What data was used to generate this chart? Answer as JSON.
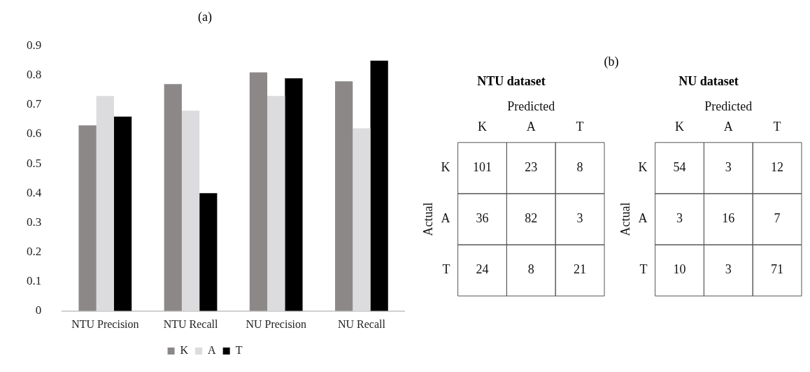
{
  "chart_data": [
    {
      "type": "bar",
      "title": "(a)",
      "categories": [
        "NTU Precision",
        "NTU Recall",
        "NU Precision",
        "NU Recall"
      ],
      "series": [
        {
          "name": "K",
          "color": "#8c8888",
          "values": [
            0.63,
            0.77,
            0.81,
            0.78
          ]
        },
        {
          "name": "A",
          "color": "#dcdbdd",
          "values": [
            0.73,
            0.68,
            0.73,
            0.62
          ]
        },
        {
          "name": "T",
          "color": "#000000",
          "values": [
            0.66,
            0.4,
            0.79,
            0.85
          ]
        }
      ],
      "ylim": [
        0,
        0.9
      ],
      "yticks": [
        0,
        0.1,
        0.2,
        0.3,
        0.4,
        0.5,
        0.6,
        0.7,
        0.8,
        0.9
      ],
      "grid": false,
      "legend": "bottom"
    },
    {
      "type": "heatmap",
      "title": "NTU dataset",
      "xlabel": "Predicted",
      "ylabel": "Actual",
      "annotations": [
        "(b)"
      ],
      "categories": [
        "K",
        "A",
        "T"
      ],
      "y_categories": [
        "K",
        "A",
        "T"
      ],
      "cells": [
        [
          101,
          23,
          8
        ],
        [
          36,
          82,
          3
        ],
        [
          24,
          8,
          21
        ]
      ],
      "data_labels": true
    },
    {
      "type": "heatmap",
      "title": "NU dataset",
      "xlabel": "Predicted",
      "ylabel": "Actual",
      "categories": [
        "K",
        "A",
        "T"
      ],
      "y_categories": [
        "K",
        "A",
        "T"
      ],
      "cells": [
        [
          54,
          3,
          12
        ],
        [
          3,
          16,
          7
        ],
        [
          10,
          3,
          71
        ]
      ],
      "data_labels": true
    }
  ]
}
